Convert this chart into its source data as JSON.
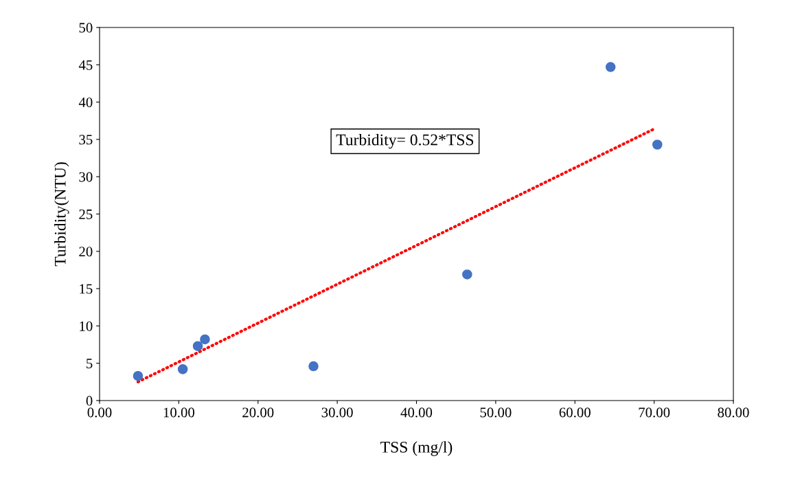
{
  "chart_data": {
    "type": "scatter",
    "xlabel": "TSS (mg/l)",
    "ylabel": "Turbidity(NTU)",
    "x": [
      4.85,
      10.5,
      12.4,
      13.3,
      27.0,
      46.4,
      64.5,
      70.4
    ],
    "series": [
      {
        "color": "#4472c4",
        "marker": "circle",
        "values": [
          3.3,
          4.2,
          7.3,
          8.2,
          4.6,
          16.9,
          44.7,
          34.3
        ]
      },
      {
        "type": "line",
        "color": "#ff0000",
        "line_style": "dotted",
        "marker": "none",
        "x": [
          4.85,
          70.0
        ],
        "values": [
          2.5,
          36.4
        ]
      }
    ],
    "annotations": [
      "Turbidity= 0.52*TSS"
    ],
    "xlim": [
      0,
      80
    ],
    "ylim": [
      0,
      50
    ],
    "xticks": [
      {
        "value": 0,
        "label": "0.00"
      },
      {
        "value": 10,
        "label": "10.00"
      },
      {
        "value": 20,
        "label": "20.00"
      },
      {
        "value": 30,
        "label": "30.00"
      },
      {
        "value": 40,
        "label": "40.00"
      },
      {
        "value": 50,
        "label": "50.00"
      },
      {
        "value": 60,
        "label": "60.00"
      },
      {
        "value": 70,
        "label": "70.00"
      },
      {
        "value": 80,
        "label": "80.00"
      }
    ],
    "yticks": [
      0,
      5,
      10,
      15,
      20,
      25,
      30,
      35,
      40,
      45,
      50
    ],
    "grid": false,
    "legend": false
  }
}
